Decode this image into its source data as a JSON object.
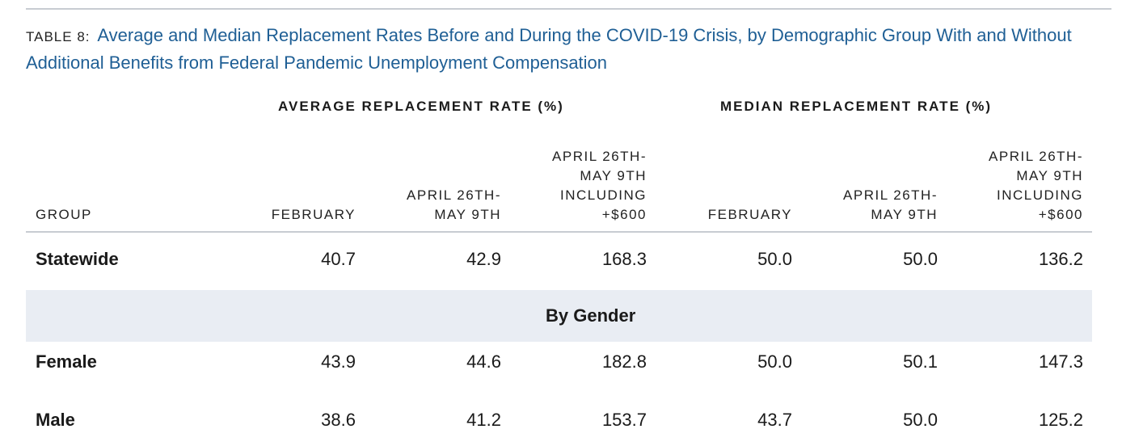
{
  "table": {
    "number": "TABLE 8:",
    "title": "Average and Median Replacement Rates Before and During the COVID-19 Crisis, by Demographic Group With and Without Additional Benefits from Federal Pandemic Unemployment Compensation",
    "group_headers": {
      "average": "AVERAGE REPLACEMENT RATE (%)",
      "median": "MEDIAN REPLACEMENT RATE (%)"
    },
    "columns": {
      "group": "GROUP",
      "avg_feb": "FEBRUARY",
      "avg_apr": [
        "APRIL 26TH-",
        "MAY 9TH"
      ],
      "avg_apr600": [
        "APRIL 26TH-",
        "MAY 9TH",
        "INCLUDING",
        "+$600"
      ],
      "med_feb": "FEBRUARY",
      "med_apr": [
        "APRIL 26TH-",
        "MAY 9TH"
      ],
      "med_apr600": [
        "APRIL 26TH-",
        "MAY 9TH",
        "INCLUDING",
        "+$600"
      ]
    },
    "rows": [
      {
        "label": "Statewide",
        "values": [
          "40.7",
          "42.9",
          "168.3",
          "50.0",
          "50.0",
          "136.2"
        ]
      },
      {
        "section": "By Gender"
      },
      {
        "label": "Female",
        "values": [
          "43.9",
          "44.6",
          "182.8",
          "50.0",
          "50.1",
          "147.3"
        ]
      },
      {
        "label": "Male",
        "values": [
          "38.6",
          "41.2",
          "153.7",
          "43.7",
          "50.0",
          "125.2"
        ]
      }
    ]
  }
}
